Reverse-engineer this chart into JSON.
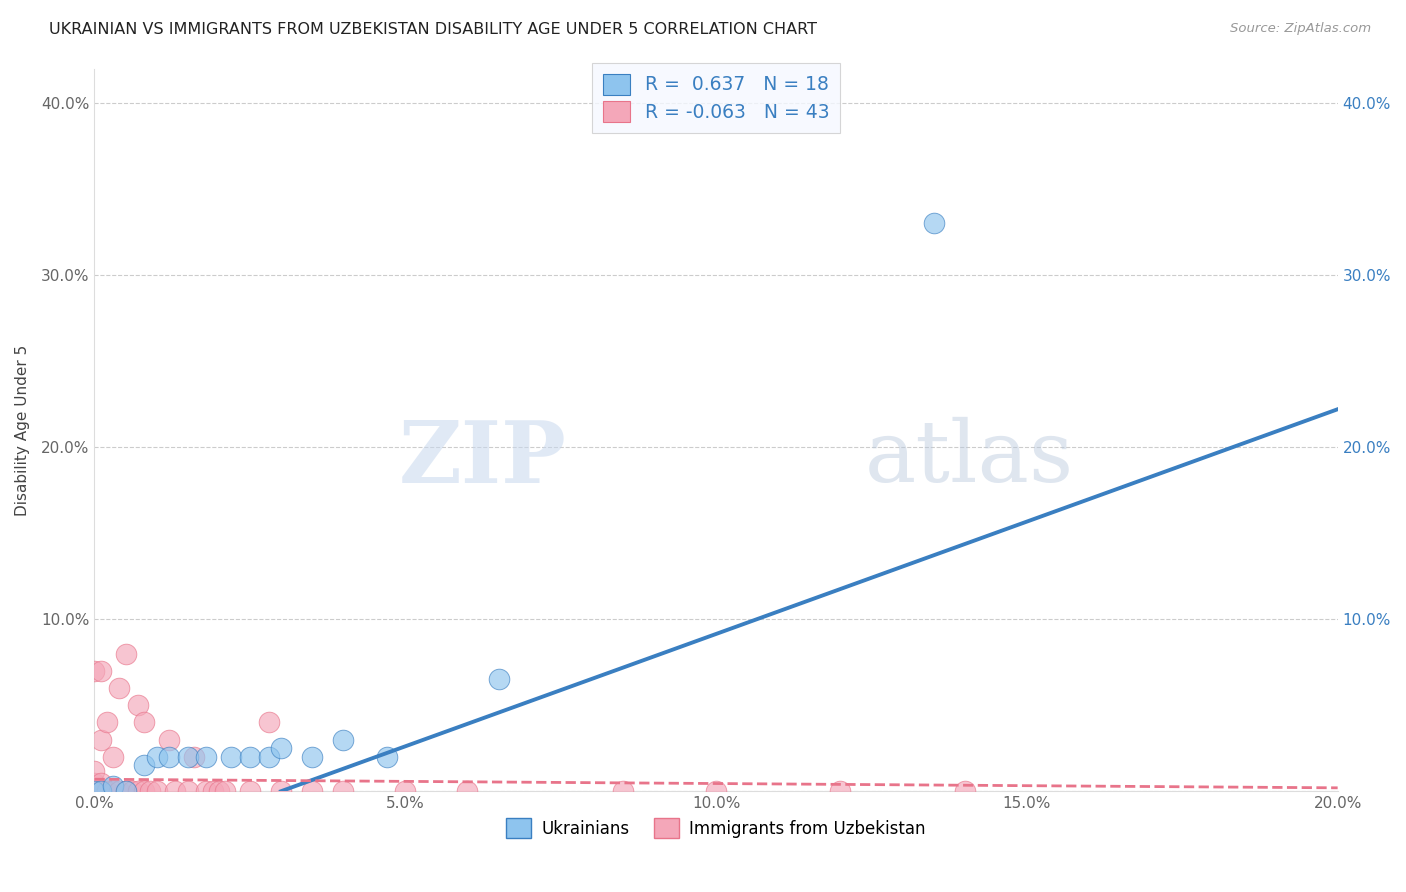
{
  "title": "UKRAINIAN VS IMMIGRANTS FROM UZBEKISTAN DISABILITY AGE UNDER 5 CORRELATION CHART",
  "source": "Source: ZipAtlas.com",
  "ylabel": "Disability Age Under 5",
  "watermark_zip": "ZIP",
  "watermark_atlas": "atlas",
  "legend_ukrainian_R": "0.637",
  "legend_ukrainian_N": "18",
  "legend_uzbekistan_R": "-0.063",
  "legend_uzbekistan_N": "43",
  "legend_label1": "Ukrainians",
  "legend_label2": "Immigrants from Uzbekistan",
  "xmin": 0.0,
  "xmax": 0.2,
  "ymin": 0.0,
  "ymax": 0.42,
  "xticks": [
    0.0,
    0.05,
    0.1,
    0.15,
    0.2
  ],
  "xtick_labels": [
    "0.0%",
    "5.0%",
    "10.0%",
    "15.0%",
    "20.0%"
  ],
  "yticks_left": [
    0.0,
    0.1,
    0.2,
    0.3,
    0.4
  ],
  "ytick_labels_left": [
    "",
    "10.0%",
    "20.0%",
    "30.0%",
    "40.0%"
  ],
  "yticks_right": [
    0.1,
    0.2,
    0.3,
    0.4
  ],
  "ytick_labels_right": [
    "10.0%",
    "20.0%",
    "30.0%",
    "40.0%"
  ],
  "color_ukrainian": "#8EC4EE",
  "color_uzbekistan": "#F4A7B9",
  "color_line_ukrainian": "#3A7FC1",
  "color_line_uzbekistan": "#E8748A",
  "background_color": "#FFFFFF",
  "grid_color": "#CCCCCC",
  "ukrainian_line_x0": 0.03,
  "ukrainian_line_y0": 0.0,
  "ukrainian_line_x1": 0.2,
  "ukrainian_line_y1": 0.222,
  "uzbekistan_line_x0": 0.0,
  "uzbekistan_line_y0": 0.007,
  "uzbekistan_line_x1": 0.2,
  "uzbekistan_line_y1": 0.002,
  "ukrainian_x": [
    0.0,
    0.001,
    0.003,
    0.005,
    0.008,
    0.01,
    0.012,
    0.015,
    0.018,
    0.022,
    0.025,
    0.028,
    0.03,
    0.035,
    0.04,
    0.047,
    0.065,
    0.135
  ],
  "ukrainian_y": [
    0.0,
    0.0,
    0.003,
    0.0,
    0.015,
    0.02,
    0.02,
    0.02,
    0.02,
    0.02,
    0.02,
    0.02,
    0.025,
    0.02,
    0.03,
    0.02,
    0.065,
    0.33
  ],
  "uzbekistan_x": [
    0.0,
    0.0,
    0.0,
    0.0,
    0.0,
    0.001,
    0.001,
    0.001,
    0.001,
    0.002,
    0.002,
    0.003,
    0.003,
    0.004,
    0.004,
    0.005,
    0.005,
    0.006,
    0.007,
    0.007,
    0.008,
    0.008,
    0.009,
    0.01,
    0.012,
    0.013,
    0.015,
    0.016,
    0.018,
    0.019,
    0.02,
    0.021,
    0.025,
    0.028,
    0.03,
    0.035,
    0.04,
    0.05,
    0.06,
    0.085,
    0.1,
    0.12,
    0.14
  ],
  "uzbekistan_y": [
    0.0,
    0.0,
    0.005,
    0.012,
    0.07,
    0.0,
    0.005,
    0.03,
    0.07,
    0.0,
    0.04,
    0.0,
    0.02,
    0.0,
    0.06,
    0.0,
    0.08,
    0.0,
    0.0,
    0.05,
    0.0,
    0.04,
    0.0,
    0.0,
    0.03,
    0.0,
    0.0,
    0.02,
    0.0,
    0.0,
    0.0,
    0.0,
    0.0,
    0.04,
    0.0,
    0.0,
    0.0,
    0.0,
    0.0,
    0.0,
    0.0,
    0.0,
    0.0
  ]
}
